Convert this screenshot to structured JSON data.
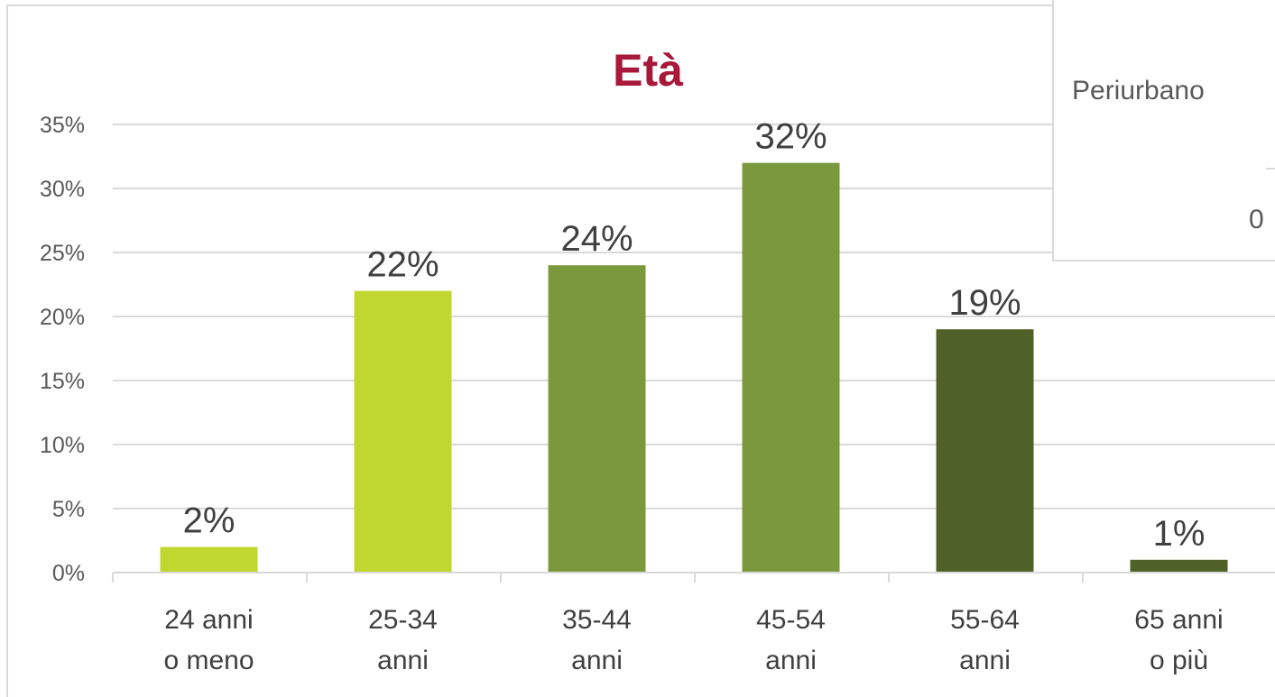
{
  "chart_data": {
    "type": "bar",
    "title": "Età",
    "categories": [
      [
        "24 anni",
        "o meno"
      ],
      [
        "25-34",
        "anni"
      ],
      [
        "35-44",
        "anni"
      ],
      [
        "45-54",
        "anni"
      ],
      [
        "55-64",
        "anni"
      ],
      [
        "65 anni",
        "o più"
      ]
    ],
    "values": [
      2,
      22,
      24,
      32,
      19,
      1
    ],
    "data_labels": [
      "2%",
      "22%",
      "24%",
      "32%",
      "19%",
      "1%"
    ],
    "ylim": [
      0,
      35
    ],
    "y_ticks": [
      {
        "value": 0,
        "label": "0%"
      },
      {
        "value": 5,
        "label": "5%"
      },
      {
        "value": 10,
        "label": "10%"
      },
      {
        "value": 15,
        "label": "15%"
      },
      {
        "value": 20,
        "label": "20%"
      },
      {
        "value": 25,
        "label": "25%"
      },
      {
        "value": 30,
        "label": "30%"
      },
      {
        "value": 35,
        "label": "35%"
      }
    ],
    "grid": true,
    "legend": "none",
    "bar_colors": [
      "#c0d730",
      "#c0d730",
      "#7a993c",
      "#7a993c",
      "#506127",
      "#506127"
    ],
    "xlabel": "",
    "ylabel": ""
  },
  "colors": {
    "title": "#a8183a",
    "grid": "#d9d9d9",
    "frame": "#d9d9d9"
  },
  "inset": {
    "label": "Periurbano",
    "fragment": "0"
  }
}
